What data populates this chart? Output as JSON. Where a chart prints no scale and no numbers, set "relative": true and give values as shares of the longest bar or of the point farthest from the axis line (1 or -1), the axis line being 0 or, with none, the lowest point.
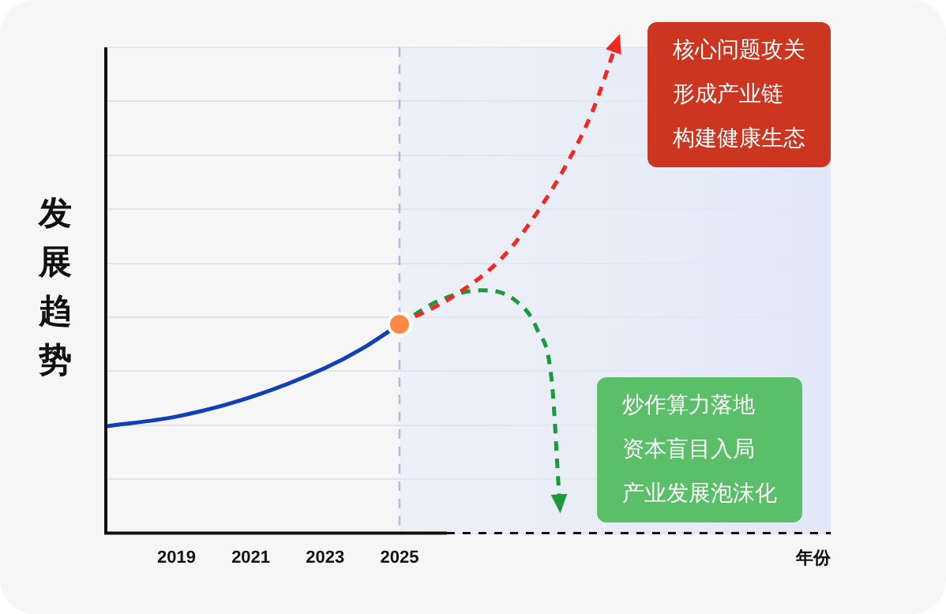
{
  "chart_data": {
    "type": "line",
    "relative": true,
    "ylabel": "发展趋势",
    "xlabel": "年份",
    "xlim": [
      2017.1,
      2036.6
    ],
    "xticks": [
      2019,
      2021,
      2023,
      2025
    ],
    "grid": "y",
    "legend": false,
    "series": [
      {
        "type": "line",
        "color": "#1040b8",
        "line_style": "solid",
        "marker": "none",
        "x": [
          2017.1,
          2019,
          2021,
          2023,
          2024,
          2025
        ],
        "values": [
          0.22,
          0.24,
          0.28,
          0.34,
          0.38,
          0.43
        ]
      },
      {
        "type": "line",
        "color": "#f02a20",
        "line_style": "dashed",
        "marker": "none",
        "x": [
          2025,
          2026.5,
          2027.8,
          2028.7,
          2029.5,
          2030.2,
          2030.8
        ],
        "values": [
          0.43,
          0.49,
          0.57,
          0.66,
          0.76,
          0.87,
          1
        ]
      },
      {
        "type": "line",
        "color": "#1a9a3a",
        "line_style": "dashed",
        "marker": "none",
        "x": [
          2025,
          2026.1,
          2027.2,
          2028.1,
          2028.7,
          2029.1,
          2029.3
        ],
        "values": [
          0.43,
          0.48,
          0.5,
          0.48,
          0.42,
          0.31,
          0.07
        ]
      },
      {
        "type": "scatter",
        "color": "#ff8a45",
        "marker": "circle",
        "x": [
          2025
        ],
        "values": [
          0.43
        ]
      }
    ],
    "ref_lines": [
      {
        "axis": "x",
        "value": 2025,
        "color": "#a8c0f0",
        "line_style": "dashed"
      }
    ],
    "bands": [
      {
        "axis": "x",
        "from": 2025,
        "to": 2036.6,
        "color": "#e2e8f8"
      }
    ],
    "annotations": [
      "核心问题攻关",
      "形成产业链",
      "构建健康生态",
      "炒作算力落地",
      "资本盲目入局",
      "产业发展泡沫化"
    ]
  }
}
